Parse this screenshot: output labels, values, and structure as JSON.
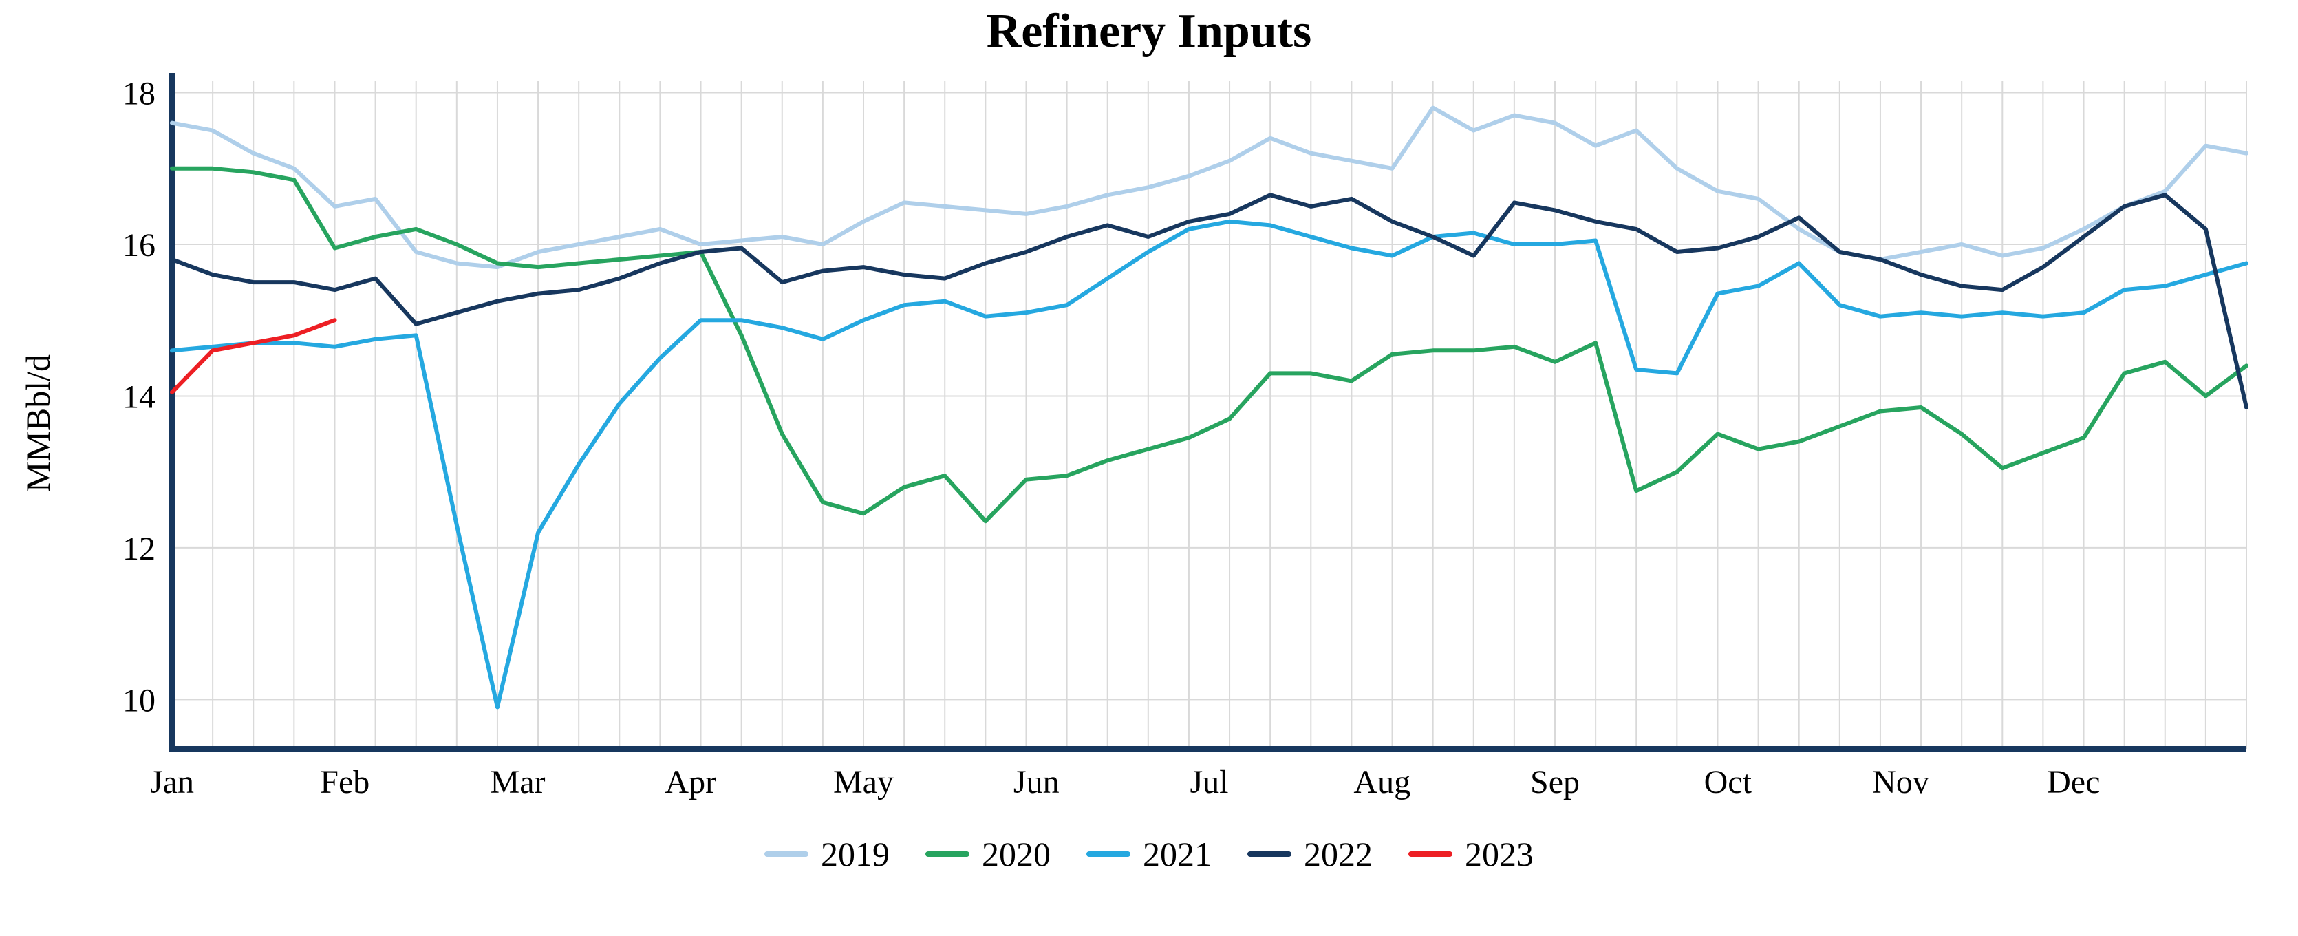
{
  "chart_data": {
    "type": "line",
    "title": "Refinery Inputs",
    "ylabel": "MMBbl/d",
    "xlabel": "",
    "x_unit": "week-of-year",
    "x_tick_labels": [
      "Jan",
      "Feb",
      "Mar",
      "Apr",
      "May",
      "Jun",
      "Jul",
      "Aug",
      "Sep",
      "Oct",
      "Nov",
      "Dec"
    ],
    "y_ticks": [
      10,
      12,
      14,
      16,
      18
    ],
    "ylim": [
      9.35,
      18.15
    ],
    "weeks_per_year": 52,
    "grid": true,
    "legend_position": "bottom",
    "axis_color": "#17375E",
    "grid_color": "#D9D9D9",
    "series": [
      {
        "name": "2019",
        "color": "#AFCFEA",
        "values": [
          17.6,
          17.5,
          17.2,
          17.0,
          16.5,
          16.6,
          15.9,
          15.75,
          15.7,
          15.9,
          16.0,
          16.1,
          16.2,
          16.0,
          16.05,
          16.1,
          16.0,
          16.3,
          16.55,
          16.5,
          16.45,
          16.4,
          16.5,
          16.65,
          16.75,
          16.9,
          17.1,
          17.4,
          17.2,
          17.1,
          17.0,
          17.8,
          17.5,
          17.7,
          17.6,
          17.3,
          17.5,
          17.0,
          16.7,
          16.6,
          16.2,
          15.9,
          15.8,
          15.9,
          16.0,
          15.85,
          15.95,
          16.2,
          16.5,
          16.7,
          17.3,
          17.2
        ]
      },
      {
        "name": "2020",
        "color": "#27A45F",
        "values": [
          17.0,
          17.0,
          16.95,
          16.85,
          15.95,
          16.1,
          16.2,
          16.0,
          15.75,
          15.7,
          15.75,
          15.8,
          15.85,
          15.9,
          14.8,
          13.5,
          12.6,
          12.45,
          12.8,
          12.95,
          12.35,
          12.9,
          12.95,
          13.15,
          13.3,
          13.45,
          13.7,
          14.3,
          14.3,
          14.2,
          14.55,
          14.6,
          14.6,
          14.65,
          14.45,
          14.7,
          12.75,
          13.0,
          13.5,
          13.3,
          13.4,
          13.6,
          13.8,
          13.85,
          13.5,
          13.05,
          13.25,
          13.45,
          14.3,
          14.45,
          14.0,
          14.4
        ]
      },
      {
        "name": "2021",
        "color": "#25A8E0",
        "values": [
          14.6,
          14.65,
          14.7,
          14.7,
          14.65,
          14.75,
          14.8,
          12.3,
          9.9,
          12.2,
          13.1,
          13.9,
          14.5,
          15.0,
          15.0,
          14.9,
          14.75,
          15.0,
          15.2,
          15.25,
          15.05,
          15.1,
          15.2,
          15.55,
          15.9,
          16.2,
          16.3,
          16.25,
          16.1,
          15.95,
          15.85,
          16.1,
          16.15,
          16.0,
          16.0,
          16.05,
          14.35,
          14.3,
          15.35,
          15.45,
          15.75,
          15.2,
          15.05,
          15.1,
          15.05,
          15.1,
          15.05,
          15.1,
          15.4,
          15.45,
          15.6,
          15.75
        ]
      },
      {
        "name": "2022",
        "color": "#17375E",
        "values": [
          15.8,
          15.6,
          15.5,
          15.5,
          15.4,
          15.55,
          14.95,
          15.1,
          15.25,
          15.35,
          15.4,
          15.55,
          15.75,
          15.9,
          15.95,
          15.5,
          15.65,
          15.7,
          15.6,
          15.55,
          15.75,
          15.9,
          16.1,
          16.25,
          16.1,
          16.3,
          16.4,
          16.65,
          16.5,
          16.6,
          16.3,
          16.1,
          15.85,
          16.55,
          16.45,
          16.3,
          16.2,
          15.9,
          15.95,
          16.1,
          16.35,
          15.9,
          15.8,
          15.6,
          15.45,
          15.4,
          15.7,
          16.1,
          16.5,
          16.65,
          16.2,
          13.85
        ]
      },
      {
        "name": "2023",
        "color": "#ED1F24",
        "values": [
          14.05,
          14.6,
          14.7,
          14.8,
          15.0
        ]
      }
    ]
  }
}
